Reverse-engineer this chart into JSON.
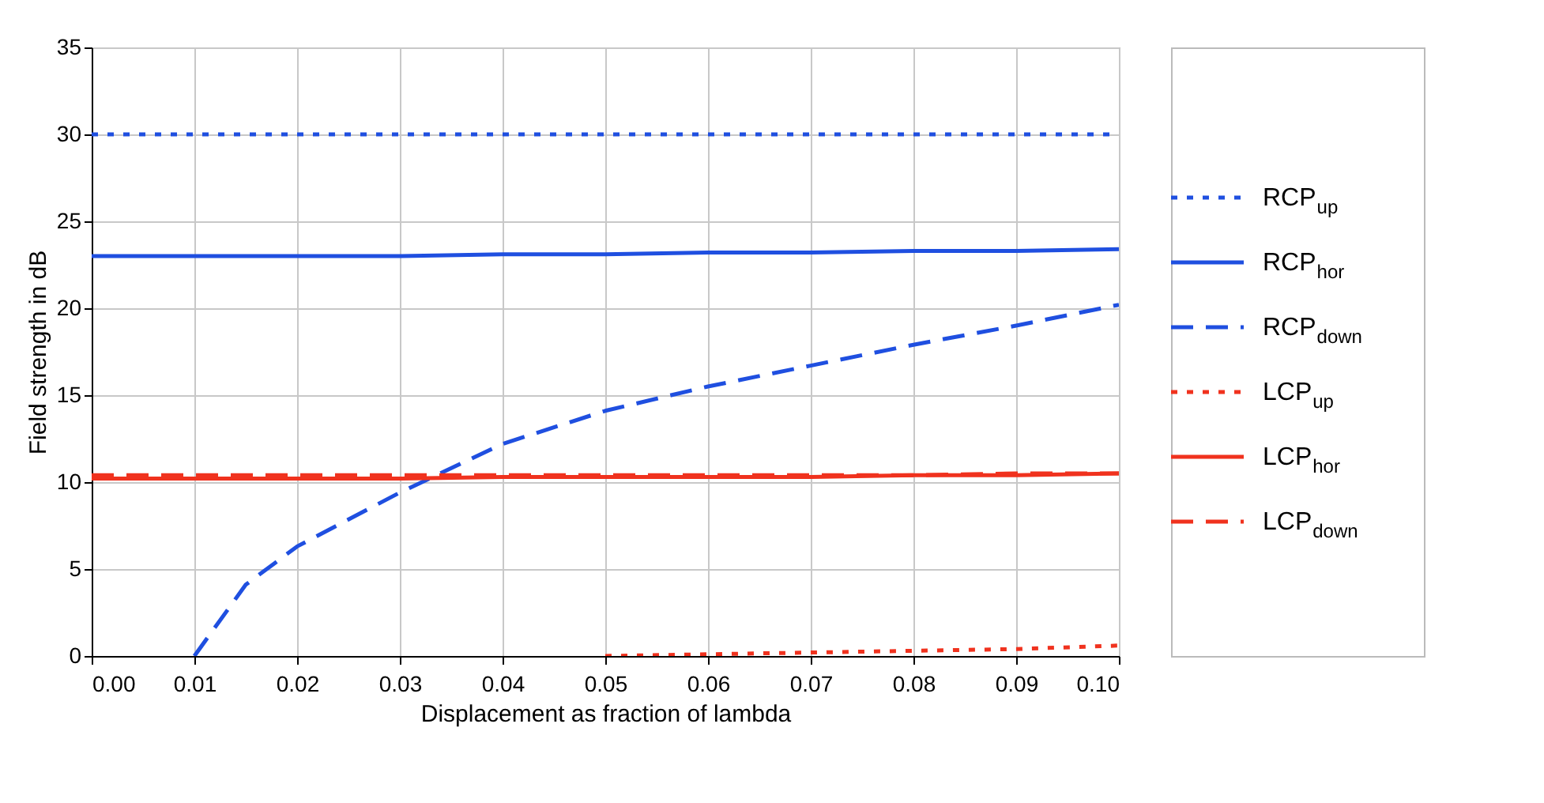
{
  "chart_data": {
    "type": "line",
    "xlabel": "Displacement as fraction of lambda",
    "ylabel": "Field strength in dB",
    "xlim": [
      0,
      0.1
    ],
    "ylim": [
      0,
      35
    ],
    "xticks": [
      {
        "value": 0,
        "label": "0.00"
      },
      {
        "value": 0.01,
        "label": "0.01"
      },
      {
        "value": 0.02,
        "label": "0.02"
      },
      {
        "value": 0.03,
        "label": "0.03"
      },
      {
        "value": 0.04,
        "label": "0.04"
      },
      {
        "value": 0.05,
        "label": "0.05"
      },
      {
        "value": 0.06,
        "label": "0.06"
      },
      {
        "value": 0.07,
        "label": "0.07"
      },
      {
        "value": 0.08,
        "label": "0.08"
      },
      {
        "value": 0.09,
        "label": "0.09"
      },
      {
        "value": 0.1,
        "label": "0.10"
      }
    ],
    "yticks": [
      0,
      5,
      10,
      15,
      20,
      25,
      30,
      35
    ],
    "grid": true,
    "legend": "right",
    "marker": "none",
    "x": [
      0,
      0.01,
      0.02,
      0.03,
      0.04,
      0.05,
      0.06,
      0.07,
      0.08,
      0.09,
      0.1
    ],
    "series": [
      {
        "name": "RCP$_{up}$",
        "color": "#1f4fe0",
        "line_style": "dotted",
        "values": [
          30,
          30,
          30,
          30,
          30,
          30,
          30,
          30,
          30,
          30,
          30
        ]
      },
      {
        "name": "RCP$_{hor}$",
        "color": "#1f4fe0",
        "line_style": "solid",
        "values": [
          23,
          23,
          23,
          23,
          23.1,
          23.1,
          23.2,
          23.2,
          23.3,
          23.3,
          23.4
        ]
      },
      {
        "name": "RCP$_{down}$",
        "color": "#1f4fe0",
        "line_style": "dashed",
        "x": [
          0.01,
          0.015,
          0.02,
          0.03,
          0.04,
          0.05,
          0.06,
          0.07,
          0.08,
          0.09,
          0.1
        ],
        "values": [
          0,
          4.1,
          6.3,
          9.4,
          12.2,
          14.1,
          15.5,
          16.7,
          17.9,
          19.0,
          20.2
        ]
      },
      {
        "name": "LCP$_{up}$",
        "color": "#f0321e",
        "line_style": "dotted",
        "x": [
          0.05,
          0.06,
          0.07,
          0.08,
          0.09,
          0.1
        ],
        "values": [
          0,
          0.1,
          0.2,
          0.3,
          0.4,
          0.6
        ]
      },
      {
        "name": "LCP$_{hor}$",
        "color": "#f0321e",
        "line_style": "solid",
        "values": [
          10.2,
          10.2,
          10.2,
          10.2,
          10.3,
          10.3,
          10.3,
          10.3,
          10.4,
          10.4,
          10.5
        ]
      },
      {
        "name": "LCP$_{down}$",
        "color": "#f0321e",
        "line_style": "dashed",
        "values": [
          10.4,
          10.4,
          10.4,
          10.4,
          10.4,
          10.4,
          10.4,
          10.4,
          10.4,
          10.5,
          10.5
        ]
      }
    ]
  }
}
